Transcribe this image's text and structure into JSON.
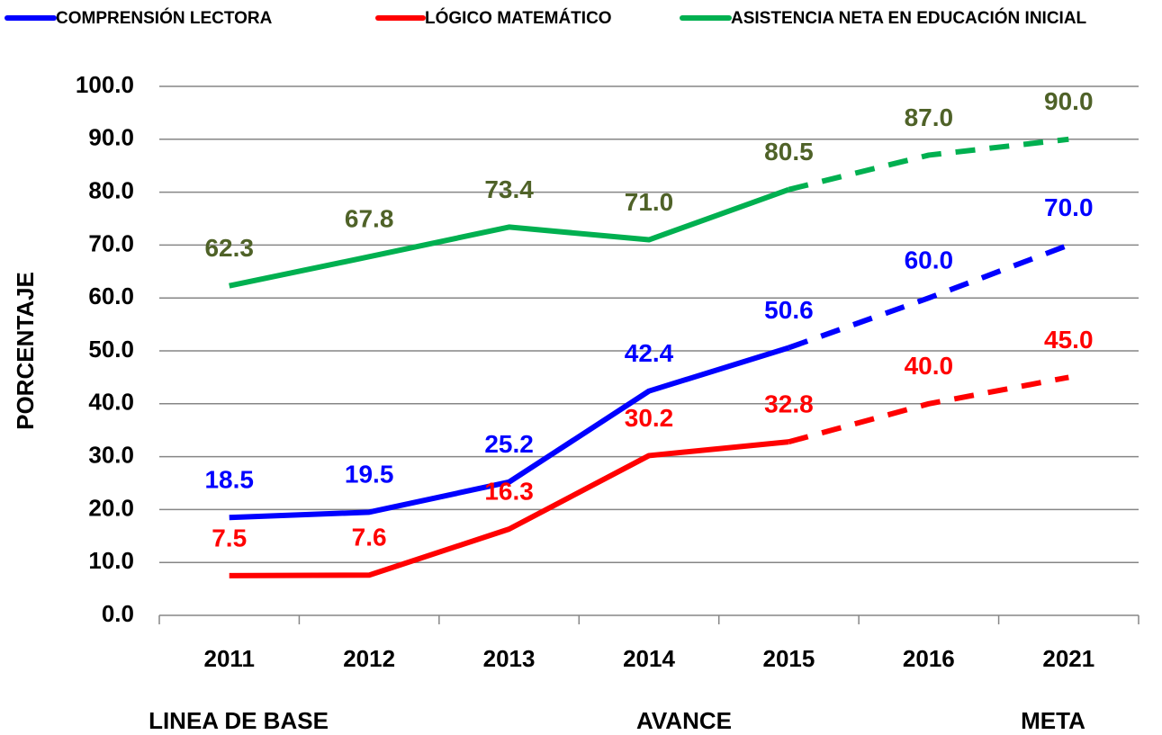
{
  "chart_data": {
    "type": "line",
    "y_label": "PORCENTAJE",
    "categories": [
      "2011",
      "2012",
      "2013",
      "2014",
      "2015",
      "2016",
      "2021"
    ],
    "dashed_after": "2015",
    "series": [
      {
        "name": "COMPRENSIÓN LECTORA",
        "color": "#0000ff",
        "label_color": "#0000ff",
        "values": [
          18.5,
          19.5,
          25.2,
          42.4,
          50.6,
          60,
          70
        ],
        "value_labels": [
          "18.5",
          "19.5",
          "25.2",
          "42.4",
          "50.6",
          "60.0",
          "70.0"
        ]
      },
      {
        "name": "LÓGICO MATEMÁTICO",
        "color": "#ff0000",
        "label_color": "#ff0000",
        "values": [
          7.5,
          7.6,
          16.3,
          30.2,
          32.8,
          40,
          45
        ],
        "value_labels": [
          "7.5",
          "7.6",
          "16.3",
          "30.2",
          "32.8",
          "40.0",
          "45.0"
        ]
      },
      {
        "name": "ASISTENCIA NETA EN EDUCACIÓN INICIAL",
        "color": "#00b050",
        "label_color": "#4f6228",
        "values": [
          62.3,
          67.8,
          73.4,
          71,
          80.5,
          87,
          90
        ],
        "value_labels": [
          "62.3",
          "67.8",
          "73.4",
          "71.0",
          "80.5",
          "87.0",
          "90.0"
        ]
      }
    ],
    "ylim": [
      0,
      100
    ],
    "yticks": [
      {
        "value": 0,
        "label": "0.0"
      },
      {
        "value": 10,
        "label": "10.0"
      },
      {
        "value": 20,
        "label": "20.0"
      },
      {
        "value": 30,
        "label": "30.0"
      },
      {
        "value": 40,
        "label": "40.0"
      },
      {
        "value": 50,
        "label": "50.0"
      },
      {
        "value": 60,
        "label": "60.0"
      },
      {
        "value": 70,
        "label": "70.0"
      },
      {
        "value": 80,
        "label": "80.0"
      },
      {
        "value": 90,
        "label": "90.0"
      },
      {
        "value": 100,
        "label": "100.0"
      }
    ],
    "grid": true,
    "annotations": [
      "LINEA DE BASE",
      "AVANCE",
      "META"
    ]
  }
}
